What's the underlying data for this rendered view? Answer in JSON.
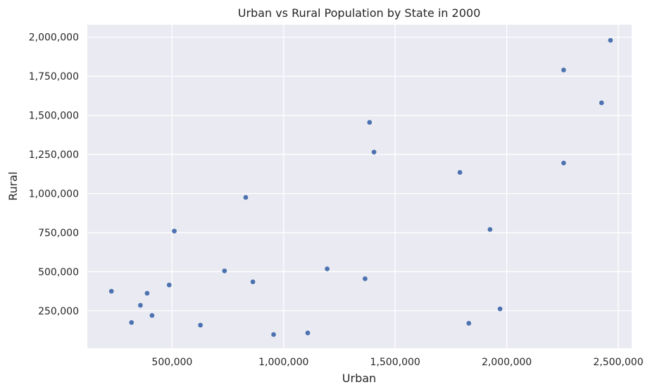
{
  "chart_data": {
    "type": "scatter",
    "title": "Urban vs Rural Population by State in 2000",
    "xlabel": "Urban",
    "ylabel": "Rural",
    "xlim": [
      120000,
      2560000
    ],
    "ylim": [
      10000,
      2080000
    ],
    "xticks": [
      500000,
      1000000,
      1500000,
      2000000,
      2500000
    ],
    "xtick_labels": [
      "500,000",
      "1,000,000",
      "1,500,000",
      "2,000,000",
      "2,500,000"
    ],
    "yticks": [
      250000,
      500000,
      750000,
      1000000,
      1250000,
      1500000,
      1750000,
      2000000
    ],
    "ytick_labels": [
      "250,000",
      "500,000",
      "750,000",
      "1,000,000",
      "1,250,000",
      "1,500,000",
      "1,750,000",
      "2,000,000"
    ],
    "grid": true,
    "point_color": "#4c72b0",
    "background_color": "#eaeaf2",
    "points": [
      {
        "x": 228000,
        "y": 375000
      },
      {
        "x": 318000,
        "y": 175000
      },
      {
        "x": 358000,
        "y": 285000
      },
      {
        "x": 388000,
        "y": 362000
      },
      {
        "x": 410000,
        "y": 220000
      },
      {
        "x": 487000,
        "y": 415000
      },
      {
        "x": 510000,
        "y": 760000
      },
      {
        "x": 627000,
        "y": 158000
      },
      {
        "x": 735000,
        "y": 505000
      },
      {
        "x": 830000,
        "y": 975000
      },
      {
        "x": 862000,
        "y": 435000
      },
      {
        "x": 955000,
        "y": 98000
      },
      {
        "x": 1108000,
        "y": 108000
      },
      {
        "x": 1195000,
        "y": 518000
      },
      {
        "x": 1365000,
        "y": 455000
      },
      {
        "x": 1385000,
        "y": 1455000
      },
      {
        "x": 1405000,
        "y": 1265000
      },
      {
        "x": 1790000,
        "y": 1135000
      },
      {
        "x": 1830000,
        "y": 170000
      },
      {
        "x": 1925000,
        "y": 770000
      },
      {
        "x": 1970000,
        "y": 262000
      },
      {
        "x": 2255000,
        "y": 1790000
      },
      {
        "x": 2255000,
        "y": 1195000
      },
      {
        "x": 2425000,
        "y": 1580000
      },
      {
        "x": 2465000,
        "y": 1980000
      }
    ]
  }
}
